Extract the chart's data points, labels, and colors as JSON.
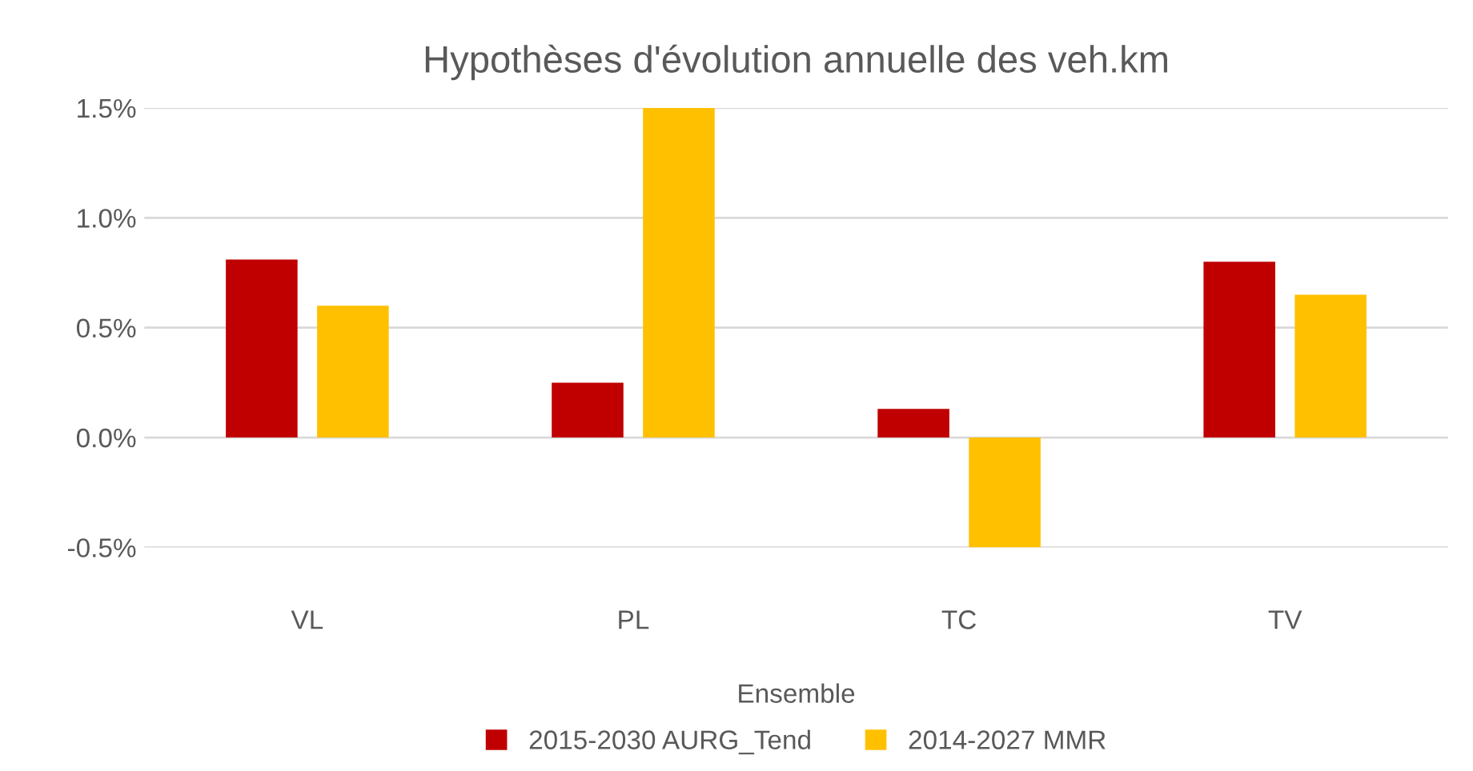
{
  "chart_data": {
    "type": "bar",
    "title": "Hypothèses d'évolution annuelle des veh.km",
    "xlabel": "Ensemble",
    "categories": [
      "VL",
      "PL",
      "TC",
      "TV"
    ],
    "series": [
      {
        "name": "2015-2030 AURG_Tend",
        "color": "#c00000",
        "values": [
          0.81,
          0.25,
          0.13,
          0.8
        ]
      },
      {
        "name": "2014-2027 MMR",
        "color": "#ffc000",
        "values": [
          0.6,
          1.5,
          -0.5,
          0.65
        ]
      }
    ],
    "ylim": [
      -0.5,
      1.5
    ],
    "yticks": [
      {
        "value": -0.5,
        "label": "-0.5%"
      },
      {
        "value": 0,
        "label": "0.0%"
      },
      {
        "value": 0.5,
        "label": "0.5%"
      },
      {
        "value": 1.0,
        "label": "1.0%"
      },
      {
        "value": 1.5,
        "label": "1.5%"
      }
    ],
    "grid": "y",
    "legend": "bottom"
  }
}
